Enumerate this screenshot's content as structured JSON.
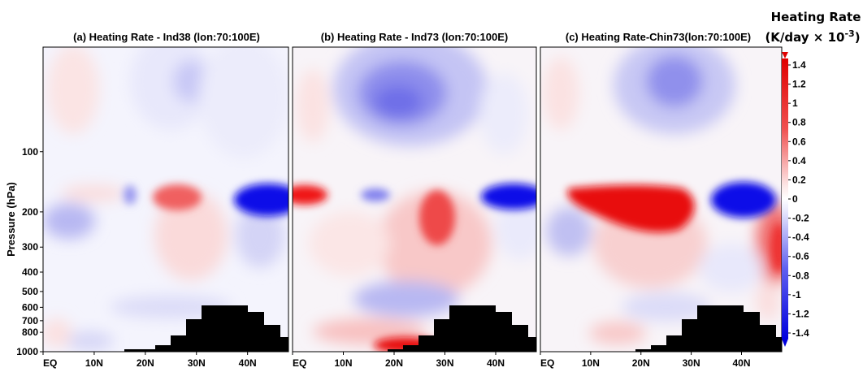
{
  "chart_data": [
    {
      "type": "heatmap",
      "title": "(a) Heating Rate - Ind38 (lon:70:100E)",
      "ylabel": "Pressure (hPa)",
      "x_ticks": [
        "EQ",
        "10N",
        "20N",
        "30N",
        "40N"
      ],
      "x_range": [
        0,
        48
      ],
      "y_ticks": [
        "100",
        "200",
        "300",
        "400",
        "500",
        "600",
        "700",
        "800",
        "1000"
      ],
      "y_range": [
        30,
        1000
      ],
      "y_scale": "log-pressure",
      "terrain_mask": "black topography, 15N-48N"
    },
    {
      "type": "heatmap",
      "title": "(b) Heating Rate - Ind73 (lon:70:100E)",
      "x_ticks": [
        "EQ",
        "10N",
        "20N",
        "30N",
        "40N"
      ],
      "x_range": [
        0,
        48
      ],
      "y_range": [
        30,
        1000
      ],
      "terrain_mask": "black topography, 15N-48N"
    },
    {
      "type": "heatmap",
      "title": "(c) Heating Rate-Chin73(lon:70:100E)",
      "x_ticks": [
        "EQ",
        "10N",
        "20N",
        "30N",
        "40N"
      ],
      "x_range": [
        0,
        48
      ],
      "y_range": [
        30,
        1000
      ],
      "terrain_mask": "black topography, 15N-48N"
    }
  ],
  "colorbar": {
    "title_line1": "Heating Rate",
    "title_line2": "(K/day × 10",
    "title_sup": "-3",
    "title_close": ")",
    "labels": [
      "1.4",
      "1.2",
      "1",
      "0.8",
      "0.6",
      "0.4",
      "0.2",
      "0",
      "-0.2",
      "-0.4",
      "-0.6",
      "-0.8",
      "-1",
      "-1.2",
      "-1.4"
    ],
    "range": [
      -1.5,
      1.5
    ],
    "positive_color": "#ee1111",
    "negative_color": "#1111ee"
  }
}
